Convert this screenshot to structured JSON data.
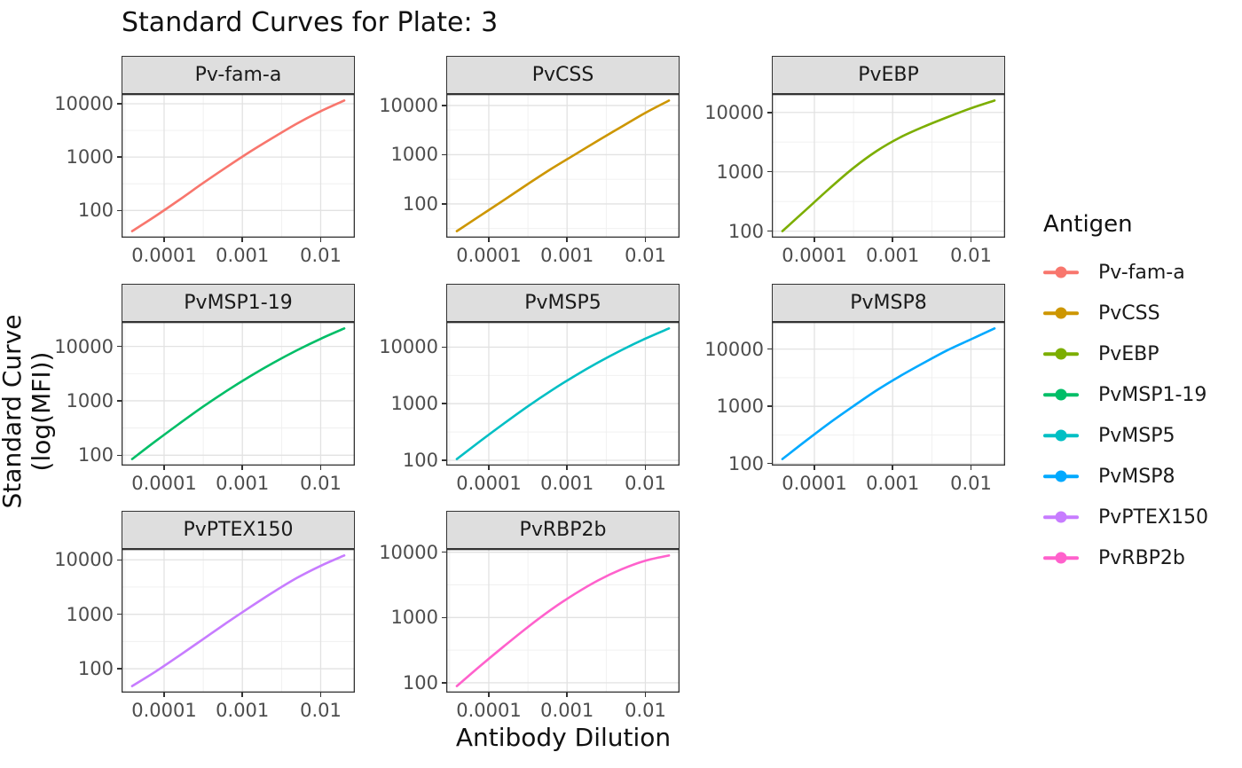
{
  "title": "Standard Curves for Plate: 3",
  "axes": {
    "x_title": "Antibody Dilution",
    "y_title": "Standard Curve (log(MFI))"
  },
  "legend": {
    "title": "Antigen",
    "entries": [
      {
        "label": "Pv-fam-a",
        "color": "#F8766D"
      },
      {
        "label": "PvCSS",
        "color": "#CD9600"
      },
      {
        "label": "PvEBP",
        "color": "#7CAE00"
      },
      {
        "label": "PvMSP1-19",
        "color": "#00BE67"
      },
      {
        "label": "PvMSP5",
        "color": "#00BFC4"
      },
      {
        "label": "PvMSP8",
        "color": "#00A9FF"
      },
      {
        "label": "PvPTEX150",
        "color": "#C77CFF"
      },
      {
        "label": "PvRBP2b",
        "color": "#FF61CC"
      }
    ]
  },
  "chart_data": {
    "type": "line",
    "title": "Standard Curves for Plate: 3",
    "xlabel": "Antibody Dilution",
    "ylabel": "Standard Curve (log(MFI))",
    "facet_variable": "Antigen",
    "x_scale": "log10",
    "y_scale": "log10",
    "grid": true,
    "legend_position": "right",
    "x_ticks": [
      {
        "value": 0.0001,
        "label": "0.0001"
      },
      {
        "value": 0.001,
        "label": "0.001"
      },
      {
        "value": 0.01,
        "label": "0.01"
      }
    ],
    "y_ticks": [
      {
        "value": 100,
        "label": "100"
      },
      {
        "value": 1000,
        "label": "1000"
      },
      {
        "value": 10000,
        "label": "10000"
      }
    ],
    "x": [
      3.90625e-05,
      7.8125e-05,
      0.00015625,
      0.0003125,
      0.000625,
      0.00125,
      0.0025,
      0.005,
      0.01,
      0.02
    ],
    "series": [
      {
        "name": "Pv-fam-a",
        "color": "#F8766D",
        "values": [
          41,
          79,
          158,
          324,
          646,
          1259,
          2344,
          4266,
          7244,
          11482
        ]
      },
      {
        "name": "PvCSS",
        "color": "#CD9600",
        "values": [
          28,
          58,
          120,
          251,
          513,
          1000,
          1950,
          3715,
          7079,
          12589
        ]
      },
      {
        "name": "PvEBP",
        "color": "#7CAE00",
        "values": [
          100,
          229,
          525,
          1148,
          2239,
          3802,
          5754,
          8318,
          11749,
          15849
        ]
      },
      {
        "name": "PvMSP1-19",
        "color": "#00BE67",
        "values": [
          85,
          182,
          380,
          776,
          1514,
          2818,
          5012,
          8511,
          13804,
          21380
        ]
      },
      {
        "name": "PvMSP5",
        "color": "#00BFC4",
        "values": [
          105,
          219,
          447,
          891,
          1698,
          3090,
          5370,
          8913,
          14125,
          21380
        ]
      },
      {
        "name": "PvMSP8",
        "color": "#00A9FF",
        "values": [
          120,
          251,
          513,
          1000,
          1905,
          3388,
          5754,
          9550,
          14791,
          22909
        ]
      },
      {
        "name": "PvPTEX150",
        "color": "#C77CFF",
        "values": [
          48,
          89,
          174,
          347,
          692,
          1349,
          2570,
          4677,
          7762,
          12023
        ]
      },
      {
        "name": "PvRBP2b",
        "color": "#FF61CC",
        "values": [
          89,
          182,
          363,
          708,
          1318,
          2291,
          3715,
          5495,
          7413,
          8913
        ]
      }
    ]
  },
  "style": {
    "panel_border_color": "#333333",
    "strip_fill": "#dedede",
    "grid_major_color": "#e2e2e2",
    "grid_minor_color": "#efefef",
    "tick_text_color": "#4d4d4d"
  }
}
